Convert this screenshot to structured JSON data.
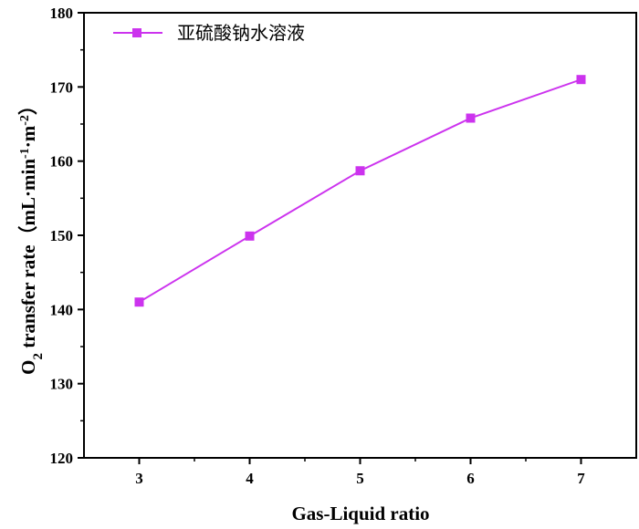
{
  "chart_data": {
    "type": "line",
    "x": [
      3,
      4,
      5,
      6,
      7
    ],
    "series": [
      {
        "name": "亚硫酸钠水溶液",
        "values": [
          141.0,
          149.9,
          158.7,
          165.8,
          171.0
        ],
        "color": "#cc33ee",
        "marker": "square"
      }
    ],
    "xlabel": "Gas-Liquid ratio",
    "ylabel": {
      "part1": "O",
      "sub": "2",
      "part2": " transfer rate（mL·min",
      "sup1": "-1",
      "part3": "·m",
      "sup2": "-2",
      "part4": "）"
    },
    "xlim": [
      2.5,
      7.5
    ],
    "ylim": [
      120,
      180
    ],
    "xticks": [
      "3",
      "4",
      "5",
      "6",
      "7"
    ],
    "yticks": [
      "120",
      "130",
      "140",
      "150",
      "160",
      "170",
      "180"
    ],
    "legend_position": "top-left",
    "grid": false
  }
}
